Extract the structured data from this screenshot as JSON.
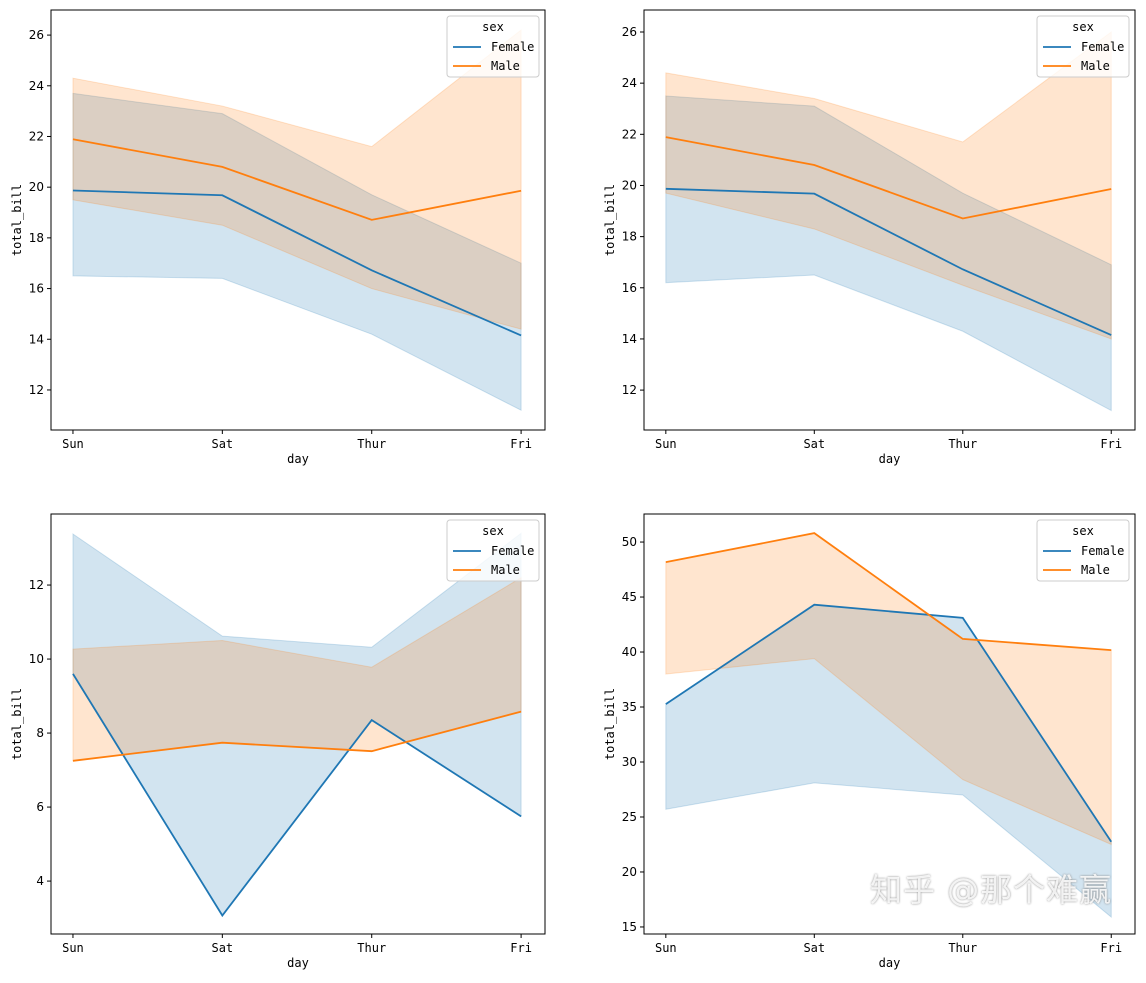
{
  "colors": {
    "Female": "#1f77b4",
    "Male": "#ff7f0e"
  },
  "watermark": "知乎 @那个难赢",
  "chart_data": [
    {
      "type": "line",
      "xlabel": "day",
      "ylabel": "total_bill",
      "categories": [
        "Sun",
        "Sat",
        "Thur",
        "Fri"
      ],
      "ylim": [
        10.42,
        26.99
      ],
      "yticks": [
        12,
        14,
        16,
        18,
        20,
        22,
        24,
        26
      ],
      "legend": {
        "title": "sex",
        "placement": "top-right"
      },
      "series": [
        {
          "name": "Female",
          "values": [
            19.87,
            19.68,
            16.72,
            14.15
          ],
          "ci_low": [
            16.5,
            16.4,
            14.2,
            11.2
          ],
          "ci_high": [
            23.7,
            22.9,
            19.7,
            17.0
          ]
        },
        {
          "name": "Male",
          "values": [
            21.89,
            20.8,
            18.71,
            19.86
          ],
          "ci_low": [
            19.5,
            18.5,
            16.0,
            14.4
          ],
          "ci_high": [
            24.3,
            23.2,
            21.6,
            26.2
          ]
        }
      ]
    },
    {
      "type": "line",
      "xlabel": "day",
      "ylabel": "total_bill",
      "categories": [
        "Sun",
        "Sat",
        "Thur",
        "Fri"
      ],
      "ylim": [
        10.44,
        26.86
      ],
      "yticks": [
        12,
        14,
        16,
        18,
        20,
        22,
        24,
        26
      ],
      "legend": {
        "title": "sex",
        "placement": "top-right"
      },
      "series": [
        {
          "name": "Female",
          "values": [
            19.87,
            19.68,
            16.72,
            14.15
          ],
          "ci_low": [
            16.2,
            16.5,
            14.3,
            11.2
          ],
          "ci_high": [
            23.5,
            23.1,
            19.7,
            16.9
          ]
        },
        {
          "name": "Male",
          "values": [
            21.89,
            20.8,
            18.71,
            19.86
          ],
          "ci_low": [
            19.7,
            18.3,
            16.1,
            14.0
          ],
          "ci_high": [
            24.4,
            23.4,
            21.7,
            26.0
          ]
        }
      ]
    },
    {
      "type": "line",
      "xlabel": "day",
      "ylabel": "total_bill",
      "categories": [
        "Sun",
        "Sat",
        "Thur",
        "Fri"
      ],
      "ylim": [
        2.57,
        13.92
      ],
      "yticks": [
        4,
        6,
        8,
        10,
        12
      ],
      "legend": {
        "title": "sex",
        "placement": "top-right"
      },
      "series": [
        {
          "name": "Female",
          "values": [
            9.6,
            3.07,
            8.35,
            5.75
          ],
          "ci_low": [
            9.6,
            3.07,
            8.35,
            5.75
          ],
          "ci_high": [
            13.38,
            10.62,
            10.32,
            13.4
          ]
        },
        {
          "name": "Male",
          "values": [
            7.25,
            7.74,
            7.51,
            8.58
          ],
          "ci_low": [
            7.25,
            7.74,
            7.51,
            8.58
          ],
          "ci_high": [
            10.27,
            10.5,
            9.78,
            12.2
          ]
        }
      ]
    },
    {
      "type": "line",
      "xlabel": "day",
      "ylabel": "total_bill",
      "categories": [
        "Sun",
        "Sat",
        "Thur",
        "Fri"
      ],
      "ylim": [
        14.36,
        52.55
      ],
      "yticks": [
        15,
        20,
        25,
        30,
        35,
        40,
        45,
        50
      ],
      "legend": {
        "title": "sex",
        "placement": "top-right"
      },
      "series": [
        {
          "name": "Female",
          "values": [
            35.26,
            44.3,
            43.11,
            22.75
          ],
          "ci_low": [
            25.7,
            28.1,
            27.0,
            15.9
          ],
          "ci_high": [
            35.26,
            44.3,
            43.11,
            22.75
          ]
        },
        {
          "name": "Male",
          "values": [
            48.17,
            50.81,
            41.19,
            40.17
          ],
          "ci_low": [
            38.0,
            39.4,
            28.4,
            22.5
          ],
          "ci_high": [
            48.17,
            50.81,
            41.19,
            40.17
          ]
        }
      ]
    }
  ]
}
